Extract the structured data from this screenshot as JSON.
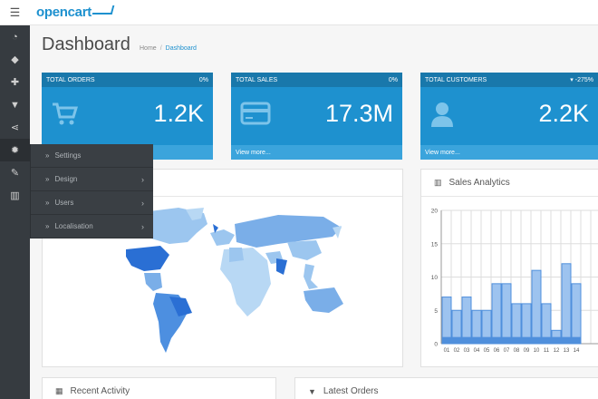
{
  "brand": {
    "name": "opencart"
  },
  "sidebar": {
    "items": [
      {
        "icon": "dashboard-icon",
        "glyph": "◔"
      },
      {
        "icon": "tag-icon",
        "glyph": "◆"
      },
      {
        "icon": "puzzle-icon",
        "glyph": "✚"
      },
      {
        "icon": "cart-icon",
        "glyph": "▼"
      },
      {
        "icon": "share-icon",
        "glyph": "⋖"
      },
      {
        "icon": "gear-icon",
        "glyph": "✹"
      },
      {
        "icon": "wrench-icon",
        "glyph": "✎"
      },
      {
        "icon": "bar-chart-icon",
        "glyph": "▥"
      }
    ]
  },
  "flyout": {
    "settings": "Settings",
    "design": "Design",
    "users": "Users",
    "localisation": "Localisation"
  },
  "page": {
    "title": "Dashboard",
    "breadcrumb": {
      "home": "Home",
      "current": "Dashboard"
    }
  },
  "tiles": {
    "orders": {
      "label": "TOTAL ORDERS",
      "pct": "0%",
      "value": "1.2K",
      "foot": "View more..."
    },
    "sales": {
      "label": "TOTAL SALES",
      "pct": "0%",
      "value": "17.3M",
      "foot": "View more..."
    },
    "customers": {
      "label": "TOTAL CUSTOMERS",
      "pct": "-275%",
      "value": "2.2K",
      "foot": "View more..."
    }
  },
  "panels": {
    "sales_analytics": "Sales Analytics",
    "recent_activity": "Recent Activity",
    "latest_orders": "Latest Orders"
  },
  "colors": {
    "accent": "#1e91cf",
    "accent_dark": "#1978ab",
    "sidebar": "#363b40"
  },
  "chart_data": {
    "type": "bar",
    "title": "Sales Analytics",
    "categories": [
      "01",
      "02",
      "03",
      "04",
      "05",
      "06",
      "07",
      "08",
      "09",
      "10",
      "11",
      "12",
      "13",
      "14"
    ],
    "series": [
      {
        "values": [
          7,
          5,
          7,
          5,
          5,
          9,
          9,
          6,
          6,
          11,
          6,
          2,
          12,
          9
        ]
      },
      {
        "values": [
          1,
          1,
          1,
          1,
          1,
          1,
          1,
          1,
          1,
          1,
          1,
          1,
          1,
          1
        ]
      }
    ],
    "y_ticks": [
      "0",
      "5",
      "10",
      "15",
      "20"
    ],
    "ylim": [
      0,
      20
    ],
    "grid": true
  }
}
